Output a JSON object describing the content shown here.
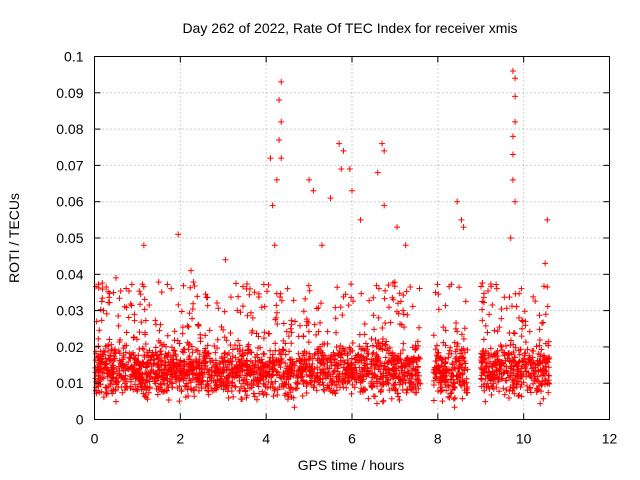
{
  "chart_data": {
    "type": "scatter",
    "title": "Day 262 of 2022, Rate Of TEC Index for receiver xmis",
    "xlabel": "GPS time / hours",
    "ylabel": "ROTI / TECUs",
    "xlim": [
      0,
      12
    ],
    "ylim": [
      0,
      0.1
    ],
    "x_ticks": [
      "0",
      "2",
      "4",
      "6",
      "8",
      "10",
      "12"
    ],
    "y_ticks": [
      "0",
      "0.01",
      "0.02",
      "0.03",
      "0.04",
      "0.05",
      "0.06",
      "0.07",
      "0.08",
      "0.09",
      "0.1"
    ],
    "grid": true,
    "marker": "+",
    "color": "#ff0000",
    "coverage_hours": [
      [
        0,
        7.6
      ],
      [
        7.9,
        8.7
      ],
      [
        9.0,
        10.6
      ]
    ],
    "peaks": [
      {
        "x": 0.05,
        "y": 0.027
      },
      {
        "x": 0.5,
        "y": 0.039
      },
      {
        "x": 1.15,
        "y": 0.048
      },
      {
        "x": 1.95,
        "y": 0.051
      },
      {
        "x": 2.25,
        "y": 0.041
      },
      {
        "x": 3.05,
        "y": 0.044
      },
      {
        "x": 4.1,
        "y": 0.072
      },
      {
        "x": 4.25,
        "y": 0.066
      },
      {
        "x": 4.3,
        "y": 0.088
      },
      {
        "x": 4.35,
        "y": 0.093
      },
      {
        "x": 4.35,
        "y": 0.082
      },
      {
        "x": 4.3,
        "y": 0.077
      },
      {
        "x": 4.35,
        "y": 0.072
      },
      {
        "x": 4.15,
        "y": 0.059
      },
      {
        "x": 4.2,
        "y": 0.048
      },
      {
        "x": 5.0,
        "y": 0.066
      },
      {
        "x": 5.1,
        "y": 0.063
      },
      {
        "x": 5.3,
        "y": 0.048
      },
      {
        "x": 5.5,
        "y": 0.061
      },
      {
        "x": 5.7,
        "y": 0.076
      },
      {
        "x": 5.8,
        "y": 0.074
      },
      {
        "x": 5.75,
        "y": 0.069
      },
      {
        "x": 5.95,
        "y": 0.069
      },
      {
        "x": 6.0,
        "y": 0.063
      },
      {
        "x": 6.2,
        "y": 0.055
      },
      {
        "x": 6.6,
        "y": 0.068
      },
      {
        "x": 6.7,
        "y": 0.076
      },
      {
        "x": 6.75,
        "y": 0.074
      },
      {
        "x": 6.75,
        "y": 0.059
      },
      {
        "x": 7.05,
        "y": 0.053
      },
      {
        "x": 7.25,
        "y": 0.048
      },
      {
        "x": 8.45,
        "y": 0.06
      },
      {
        "x": 8.55,
        "y": 0.055
      },
      {
        "x": 8.6,
        "y": 0.053
      },
      {
        "x": 9.75,
        "y": 0.096
      },
      {
        "x": 9.8,
        "y": 0.094
      },
      {
        "x": 9.8,
        "y": 0.089
      },
      {
        "x": 9.8,
        "y": 0.082
      },
      {
        "x": 9.75,
        "y": 0.078
      },
      {
        "x": 9.75,
        "y": 0.073
      },
      {
        "x": 9.75,
        "y": 0.066
      },
      {
        "x": 9.8,
        "y": 0.06
      },
      {
        "x": 10.55,
        "y": 0.055
      },
      {
        "x": 9.7,
        "y": 0.05
      },
      {
        "x": 10.5,
        "y": 0.043
      }
    ]
  }
}
